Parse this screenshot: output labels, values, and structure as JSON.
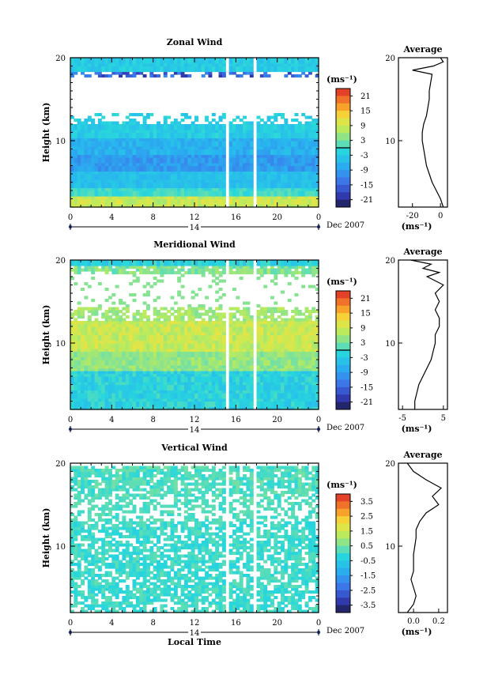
{
  "chart_data": [
    {
      "type": "heatmap",
      "title": "Zonal Wind",
      "ylabel": "Height (km)",
      "xlabel": "",
      "x_ticks": [
        "0",
        "4",
        "8",
        "12",
        "16",
        "20",
        "0"
      ],
      "y_ticks": [
        "20",
        "10"
      ],
      "ylim": [
        2,
        20
      ],
      "xlim": [
        0,
        24
      ],
      "date_center_label": "14",
      "date_label": "Dec 2007",
      "colorbar": {
        "unit": "(ms⁻¹)",
        "ticks": [
          "21",
          "15",
          "9",
          "3",
          "-3",
          "-9",
          "-15",
          "-21"
        ],
        "range": [
          -24,
          24
        ],
        "zero_marker": true
      },
      "average_profile": {
        "title": "Average",
        "x_ticks": [
          "-20",
          "0"
        ],
        "xlim": [
          -30,
          5
        ],
        "xlabel": "(ms⁻¹)",
        "y_ticks": [
          "20",
          "10"
        ],
        "heights": [
          2,
          3,
          4,
          5,
          6,
          7,
          8,
          9,
          10,
          11,
          12,
          13,
          14,
          15,
          16,
          17,
          18,
          18.5,
          19,
          19.5,
          20
        ],
        "values": [
          2,
          0,
          -3,
          -6,
          -8,
          -10,
          -11,
          -12,
          -13,
          -13,
          -12,
          -10,
          -9,
          -8,
          -8,
          -7,
          -6,
          -20,
          -5,
          2,
          0
        ]
      },
      "gaps": [
        [
          14.9,
          15.5
        ],
        [
          17.6,
          18.1
        ]
      ]
    },
    {
      "type": "heatmap",
      "title": "Meridional Wind",
      "ylabel": "Height (km)",
      "xlabel": "",
      "x_ticks": [
        "0",
        "4",
        "8",
        "12",
        "16",
        "20",
        "0"
      ],
      "y_ticks": [
        "20",
        "10"
      ],
      "ylim": [
        2,
        20
      ],
      "xlim": [
        0,
        24
      ],
      "date_center_label": "14",
      "date_label": "Dec 2007",
      "colorbar": {
        "unit": "(ms⁻¹)",
        "ticks": [
          "21",
          "15",
          "9",
          "3",
          "-3",
          "-9",
          "-15",
          "-21"
        ],
        "range": [
          -24,
          24
        ],
        "zero_marker": true
      },
      "average_profile": {
        "title": "Average",
        "x_ticks": [
          "-5",
          "5"
        ],
        "xlim": [
          -6,
          6
        ],
        "xlabel": "(ms⁻¹)",
        "y_ticks": [
          "20",
          "10"
        ],
        "heights": [
          2,
          3,
          4,
          5,
          6,
          7,
          8,
          9,
          10,
          11,
          12,
          13,
          14,
          15,
          16,
          17,
          18,
          18.5,
          19,
          19.5,
          20
        ],
        "values": [
          -2,
          -2,
          -1.5,
          -1,
          0,
          1,
          2,
          2.5,
          3,
          3,
          4,
          4,
          3,
          4,
          3,
          5,
          1,
          4,
          0,
          2,
          -3
        ]
      },
      "gaps": [
        [
          14.9,
          15.5
        ],
        [
          17.6,
          18.1
        ]
      ]
    },
    {
      "type": "heatmap",
      "title": "Vertical Wind",
      "ylabel": "Height (km)",
      "xlabel": "Local Time",
      "x_ticks": [
        "0",
        "4",
        "8",
        "12",
        "16",
        "20",
        "0"
      ],
      "y_ticks": [
        "20",
        "10"
      ],
      "ylim": [
        2,
        20
      ],
      "xlim": [
        0,
        24
      ],
      "date_center_label": "14",
      "date_label": "Dec 2007",
      "colorbar": {
        "unit": "(ms⁻¹)",
        "ticks": [
          "3.5",
          "2.5",
          "1.5",
          "0.5",
          "-0.5",
          "-1.5",
          "-2.5",
          "-3.5"
        ],
        "range": [
          -4,
          4
        ],
        "zero_marker": false
      },
      "average_profile": {
        "title": "Average",
        "x_ticks": [
          "0.0",
          "0.2"
        ],
        "xlim": [
          -0.12,
          0.27
        ],
        "xlabel": "(ms⁻¹)",
        "y_ticks": [
          "20",
          "10"
        ],
        "heights": [
          2,
          3,
          4,
          5,
          6,
          7,
          8,
          9,
          10,
          11,
          12,
          13,
          14,
          15,
          16,
          17,
          18,
          19,
          20
        ],
        "values": [
          -0.05,
          0.0,
          0.02,
          0.0,
          -0.02,
          0.0,
          0.0,
          0.0,
          0.01,
          0.02,
          0.02,
          0.05,
          0.1,
          0.2,
          0.15,
          0.22,
          0.1,
          0.0,
          -0.05
        ]
      },
      "gaps": [
        [
          14.9,
          15.5
        ],
        [
          17.6,
          18.1
        ]
      ]
    }
  ]
}
